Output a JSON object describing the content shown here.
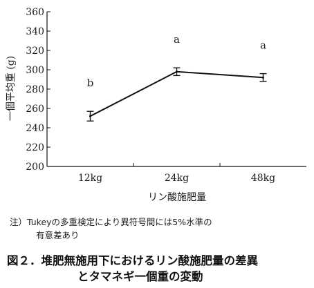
{
  "chart_data": {
    "type": "line",
    "categories": [
      "12kg",
      "24kg",
      "48kg"
    ],
    "values": [
      252,
      298,
      292
    ],
    "errors": [
      5,
      4,
      4
    ],
    "significance_letters": [
      "b",
      "a",
      "a"
    ],
    "xlabel": "リン酸施肥量",
    "ylabel": "一個平均重 (g)",
    "ylim": [
      200,
      360
    ],
    "yticks": [
      200,
      220,
      240,
      260,
      280,
      300,
      320,
      340,
      360
    ],
    "grid": false,
    "line_color": "#111111"
  },
  "note": {
    "line1": "注）Tukeyの多重検定により異符号間には5%水準の",
    "line2": "有意差あり"
  },
  "caption": {
    "line1": "図２．堆肥無施用下におけるリン酸施肥量の差異",
    "line2": "とタマネギ一個重の変動"
  }
}
